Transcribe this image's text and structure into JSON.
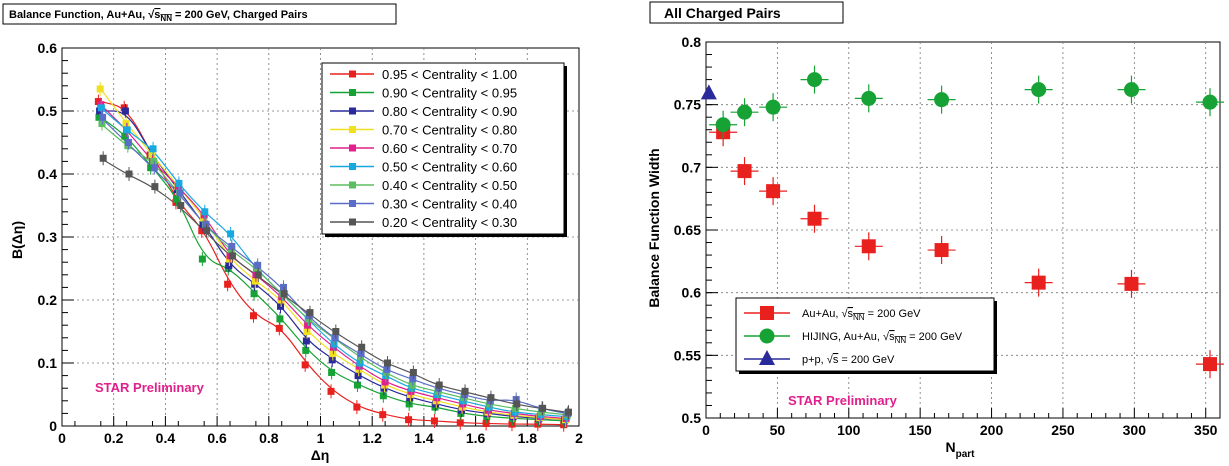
{
  "chart_data": [
    {
      "type": "scatter",
      "title": "Balance Function, Au+Au, √s_NN = 200 GeV, Charged Pairs",
      "title_parts": {
        "prefix": "Balance Function, Au+Au, ",
        "sqrt_symbol": "√",
        "s": "s",
        "sub": "NN",
        "suffix": " = 200 GeV, Charged Pairs"
      },
      "xlabel": "Δη",
      "ylabel": "B(Δη)",
      "xlim": [
        0,
        2
      ],
      "ylim": [
        0,
        0.6
      ],
      "xticks": [
        0,
        0.2,
        0.4,
        0.6,
        0.8,
        1,
        1.2,
        1.4,
        1.6,
        1.8,
        2
      ],
      "yticks": [
        0,
        0.1,
        0.2,
        0.3,
        0.4,
        0.5,
        0.6
      ],
      "grid": true,
      "legend_position": "top-right",
      "annotation": "STAR Preliminary",
      "annotation_color": "#e0208c",
      "x": [
        0.15,
        0.25,
        0.35,
        0.45,
        0.55,
        0.65,
        0.75,
        0.85,
        0.95,
        1.05,
        1.15,
        1.25,
        1.35,
        1.45,
        1.55,
        1.65,
        1.75,
        1.85,
        1.95
      ],
      "series": [
        {
          "name": "0.95 < Centrality < 1.00",
          "color": "#e8211f",
          "values": [
            0.515,
            0.505,
            0.43,
            0.355,
            0.31,
            0.225,
            0.175,
            0.155,
            0.097,
            0.055,
            0.03,
            0.018,
            0.01,
            0.008,
            0.005,
            0.004,
            0.003,
            0.003,
            0.002
          ]
        },
        {
          "name": "0.90 < Centrality < 0.95",
          "color": "#16a234",
          "values": [
            0.49,
            0.46,
            0.41,
            0.36,
            0.265,
            0.25,
            0.21,
            0.17,
            0.12,
            0.085,
            0.065,
            0.048,
            0.035,
            0.03,
            0.02,
            0.015,
            0.012,
            0.01,
            0.008
          ]
        },
        {
          "name": "0.80 < Centrality < 0.90",
          "color": "#2a2a9a",
          "values": [
            0.5,
            0.5,
            0.43,
            0.375,
            0.32,
            0.255,
            0.225,
            0.19,
            0.135,
            0.105,
            0.08,
            0.06,
            0.045,
            0.035,
            0.025,
            0.02,
            0.015,
            0.012,
            0.01
          ]
        },
        {
          "name": "0.70 < Centrality < 0.80",
          "color": "#f0e020",
          "values": [
            0.535,
            0.48,
            0.43,
            0.38,
            0.33,
            0.265,
            0.23,
            0.2,
            0.15,
            0.115,
            0.09,
            0.065,
            0.05,
            0.04,
            0.03,
            0.022,
            0.017,
            0.013,
            0.01
          ]
        },
        {
          "name": "0.60 < Centrality < 0.70",
          "color": "#e0208c",
          "values": [
            0.51,
            0.47,
            0.42,
            0.38,
            0.335,
            0.27,
            0.24,
            0.205,
            0.16,
            0.125,
            0.095,
            0.07,
            0.055,
            0.045,
            0.035,
            0.025,
            0.02,
            0.015,
            0.012
          ]
        },
        {
          "name": "0.50 < Centrality < 0.60",
          "color": "#18a8e0",
          "values": [
            0.505,
            0.47,
            0.44,
            0.385,
            0.34,
            0.305,
            0.25,
            0.21,
            0.17,
            0.13,
            0.1,
            0.08,
            0.06,
            0.05,
            0.04,
            0.03,
            0.022,
            0.018,
            0.015
          ]
        },
        {
          "name": "0.40 < Centrality < 0.50",
          "color": "#5cbe60",
          "values": [
            0.48,
            0.445,
            0.42,
            0.37,
            0.32,
            0.28,
            0.25,
            0.21,
            0.17,
            0.14,
            0.11,
            0.085,
            0.065,
            0.055,
            0.045,
            0.035,
            0.028,
            0.022,
            0.018
          ]
        },
        {
          "name": "0.30 < Centrality < 0.40",
          "color": "#5a6ec8",
          "values": [
            0.49,
            0.45,
            0.41,
            0.37,
            0.32,
            0.285,
            0.255,
            0.22,
            0.175,
            0.14,
            0.115,
            0.09,
            0.075,
            0.06,
            0.05,
            0.04,
            0.042,
            0.028,
            0.02
          ]
        },
        {
          "name": "0.20 < Centrality < 0.30",
          "color": "#555555",
          "values": [
            0.425,
            0.4,
            0.38,
            0.35,
            0.31,
            0.27,
            0.24,
            0.21,
            0.18,
            0.15,
            0.125,
            0.1,
            0.085,
            0.065,
            0.055,
            0.045,
            0.035,
            0.028,
            0.022
          ]
        }
      ]
    },
    {
      "type": "scatter",
      "title": "All Charged Pairs",
      "xlabel": "N",
      "xlabel_sub": "part",
      "ylabel": "Balance Function Width",
      "xlim": [
        0,
        360
      ],
      "ylim": [
        0.5,
        0.8
      ],
      "xticks": [
        0,
        50,
        100,
        150,
        200,
        250,
        300,
        350
      ],
      "yticks": [
        0.5,
        0.55,
        0.6,
        0.65,
        0.7,
        0.75,
        0.8
      ],
      "ytick_labels": [
        "0.5",
        "0.55",
        "0.6",
        "0.65",
        "0.7",
        "0.75",
        "0.8"
      ],
      "grid": true,
      "legend_position": "bottom-left",
      "annotation": "STAR Preliminary",
      "annotation_color": "#e0208c",
      "series": [
        {
          "name": "Au+Au, √s_NN = 200 GeV",
          "name_parts": {
            "prefix": "Au+Au, ",
            "s": "s",
            "sub": "NN",
            "suffix": " = 200 GeV"
          },
          "color": "#e8211f",
          "marker": "square",
          "x": [
            12,
            27,
            47,
            76,
            114,
            165,
            233,
            298,
            353
          ],
          "y": [
            0.728,
            0.697,
            0.681,
            0.659,
            0.637,
            0.634,
            0.608,
            0.607,
            0.543
          ]
        },
        {
          "name": "HIJING, Au+Au, √s_NN = 200 GeV",
          "name_parts": {
            "prefix": "HIJING, Au+Au,  ",
            "s": "s",
            "sub": "NN",
            "suffix": " = 200 GeV"
          },
          "color": "#16a234",
          "marker": "circle",
          "x": [
            12,
            27,
            47,
            76,
            114,
            165,
            233,
            298,
            353
          ],
          "y": [
            0.734,
            0.744,
            0.748,
            0.77,
            0.755,
            0.754,
            0.762,
            0.762,
            0.752
          ]
        },
        {
          "name": "p+p, √s = 200 GeV",
          "name_parts": {
            "prefix": "p+p, ",
            "s": "s",
            "sub": "",
            "suffix": " = 200 GeV"
          },
          "color": "#2a2a9a",
          "marker": "triangle",
          "x": [
            2
          ],
          "y": [
            0.759
          ]
        }
      ]
    }
  ]
}
